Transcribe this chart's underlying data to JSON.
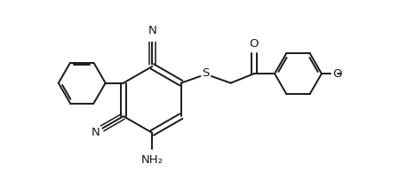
{
  "bg_color": "#ffffff",
  "line_color": "#1a1a1a",
  "line_width": 1.4,
  "font_size": 9.5,
  "fig_width": 4.58,
  "fig_height": 2.2,
  "dpi": 100,
  "xlim": [
    0,
    9.5
  ],
  "ylim": [
    0,
    4.4
  ]
}
